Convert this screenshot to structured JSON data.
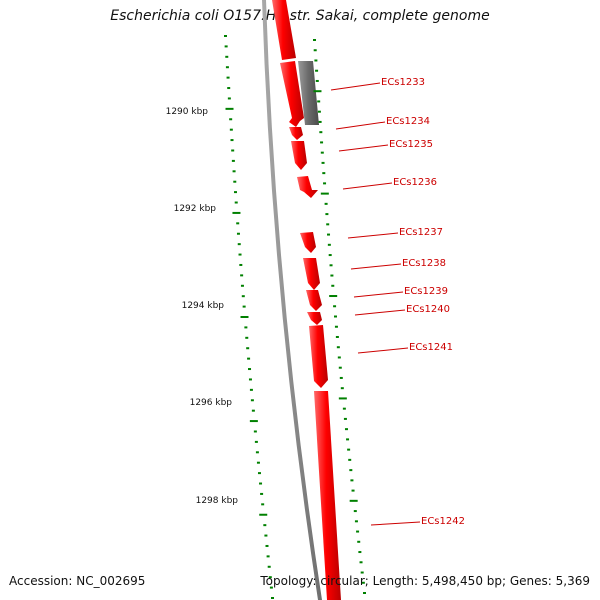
{
  "title": "Escherichia coli O157:H7 str. Sakai, complete genome",
  "footer": {
    "accession": "Accession: NC_002695",
    "summary": "Topology: circular; Length: 5,498,450 bp; Genes: 5,369"
  },
  "colors": {
    "forward_gene": "#ff0000",
    "other_feature": "#707070",
    "backbone": "#808080",
    "scale_tick": "#008000",
    "label": "#cc0000"
  },
  "scale": {
    "ticks": [
      {
        "label": "1290 kbp"
      },
      {
        "label": "1292 kbp"
      },
      {
        "label": "1294 kbp"
      },
      {
        "label": "1296 kbp"
      },
      {
        "label": "1298 kbp"
      }
    ]
  },
  "genes": [
    {
      "label": "ECs1233"
    },
    {
      "label": "ECs1234"
    },
    {
      "label": "ECs1235"
    },
    {
      "label": "ECs1236"
    },
    {
      "label": "ECs1237"
    },
    {
      "label": "ECs1238"
    },
    {
      "label": "ECs1239"
    },
    {
      "label": "ECs1240"
    },
    {
      "label": "ECs1241"
    },
    {
      "label": "ECs1242"
    }
  ]
}
